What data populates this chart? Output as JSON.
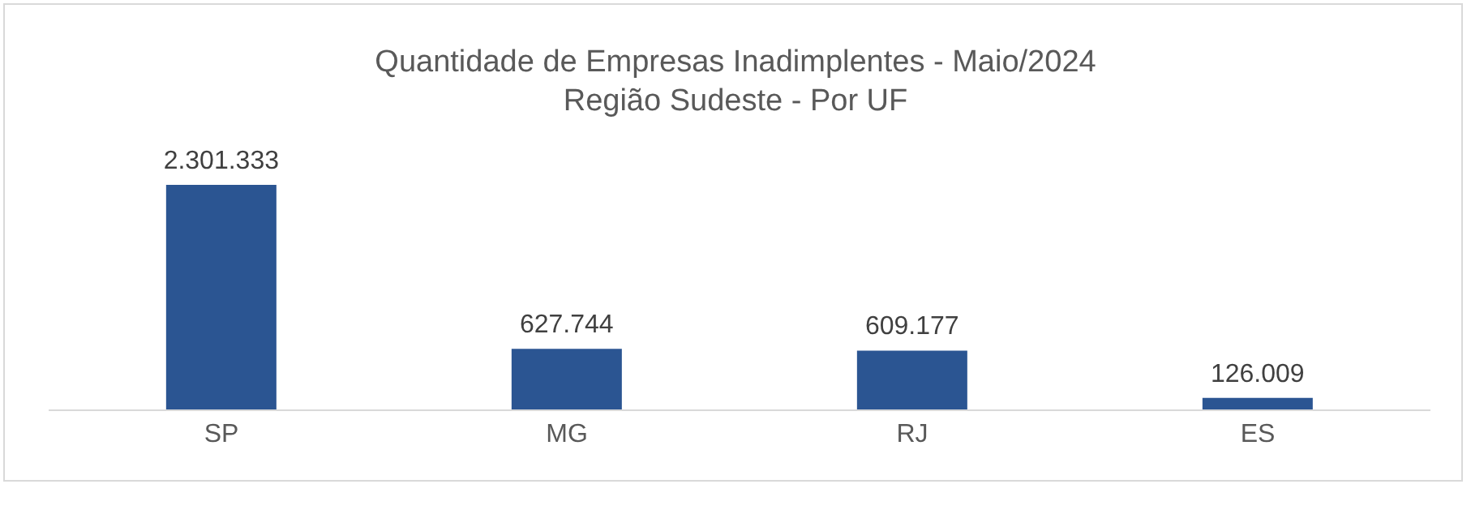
{
  "chart_data": {
    "type": "bar",
    "title": "Quantidade de Empresas Inadimplentes - Maio/2024",
    "subtitle": "Região Sudeste - Por UF",
    "categories": [
      "SP",
      "MG",
      "RJ",
      "ES"
    ],
    "values": [
      2301333,
      627744,
      609177,
      126009
    ],
    "value_labels": [
      "2.301.333",
      "627.744",
      "609.177",
      "126.009"
    ],
    "color": "#2b5592"
  }
}
